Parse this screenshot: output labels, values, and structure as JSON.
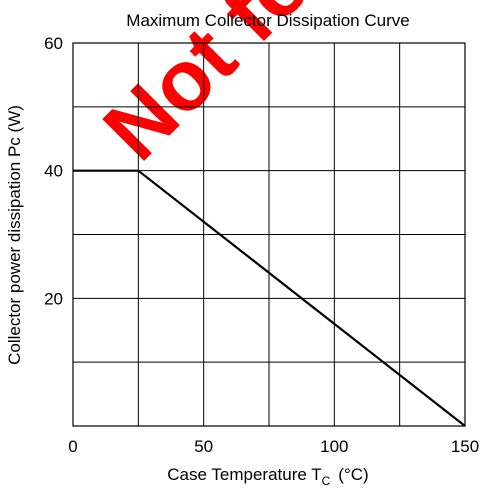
{
  "chart_data": {
    "type": "line",
    "title": "Maximum Collector Dissipation Curve",
    "xlabel_main": "Case Temperature  T",
    "xlabel_sub": "C",
    "xlabel_unit": "(°C)",
    "ylabel": "Collector power dissipation  Pc  (W)",
    "xlim": [
      0,
      150
    ],
    "ylim": [
      0,
      60
    ],
    "x_ticks": [
      0,
      50,
      100,
      150
    ],
    "y_ticks": [
      20,
      40,
      60
    ],
    "x_grid": [
      0,
      25,
      50,
      75,
      100,
      125,
      150
    ],
    "y_grid": [
      0,
      10,
      20,
      30,
      40,
      50,
      60
    ],
    "grid": true,
    "series": [
      {
        "x": [
          0,
          25,
          150
        ],
        "y": [
          40,
          40,
          0
        ]
      }
    ],
    "watermark": "Not for new"
  },
  "colors": {
    "watermark": "#ff0000",
    "line": "#000000",
    "grid": "#000000"
  }
}
